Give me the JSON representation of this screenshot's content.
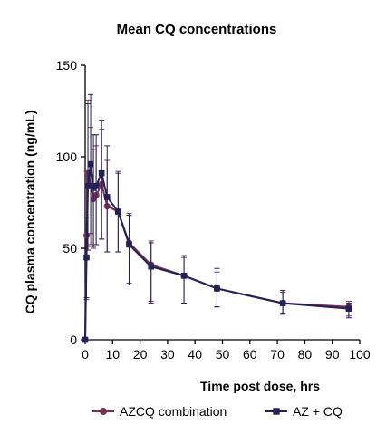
{
  "chart_data": {
    "type": "line",
    "title": "Mean CQ concentrations",
    "xlabel": "Time post dose, hrs",
    "ylabel": "CQ plasma concentration (ng/mL)",
    "xlim": [
      0,
      100
    ],
    "ylim": [
      0,
      150
    ],
    "xticks": [
      0,
      10,
      20,
      30,
      40,
      50,
      60,
      70,
      80,
      90,
      100
    ],
    "yticks": [
      0,
      50,
      100,
      150
    ],
    "grid": false,
    "legend_position": "bottom",
    "series": [
      {
        "name": "AZCQ combination",
        "color": "#7a2e52",
        "marker": "circle",
        "x": [
          0,
          0.5,
          1,
          2,
          3,
          4,
          6,
          8,
          12,
          16,
          24,
          36,
          48,
          72,
          96
        ],
        "y": [
          0,
          57,
          91,
          84,
          77,
          79,
          85,
          73,
          70,
          53,
          41,
          35,
          28,
          20,
          18
        ],
        "err_lo": [
          0,
          35,
          40,
          32,
          27,
          27,
          30,
          25,
          22,
          22,
          20,
          15,
          10,
          6,
          5
        ],
        "err_hi": [
          0,
          35,
          40,
          32,
          27,
          27,
          30,
          25,
          22,
          16,
          13,
          10,
          9,
          6,
          3
        ]
      },
      {
        "name": "AZ + CQ",
        "color": "#22205a",
        "marker": "square",
        "x": [
          0,
          0.5,
          1,
          2,
          3,
          4,
          6,
          8,
          12,
          16,
          24,
          36,
          48,
          72,
          96
        ],
        "y": [
          0,
          45,
          84,
          96,
          83,
          84,
          91,
          78,
          70,
          52,
          40,
          35,
          28,
          20,
          17
        ],
        "err_lo": [
          0,
          22,
          35,
          38,
          32,
          32,
          36,
          30,
          22,
          22,
          20,
          15,
          10,
          6,
          5
        ],
        "err_hi": [
          0,
          22,
          45,
          38,
          29,
          28,
          29,
          28,
          21,
          16,
          13,
          11,
          11,
          7,
          3
        ]
      }
    ]
  }
}
